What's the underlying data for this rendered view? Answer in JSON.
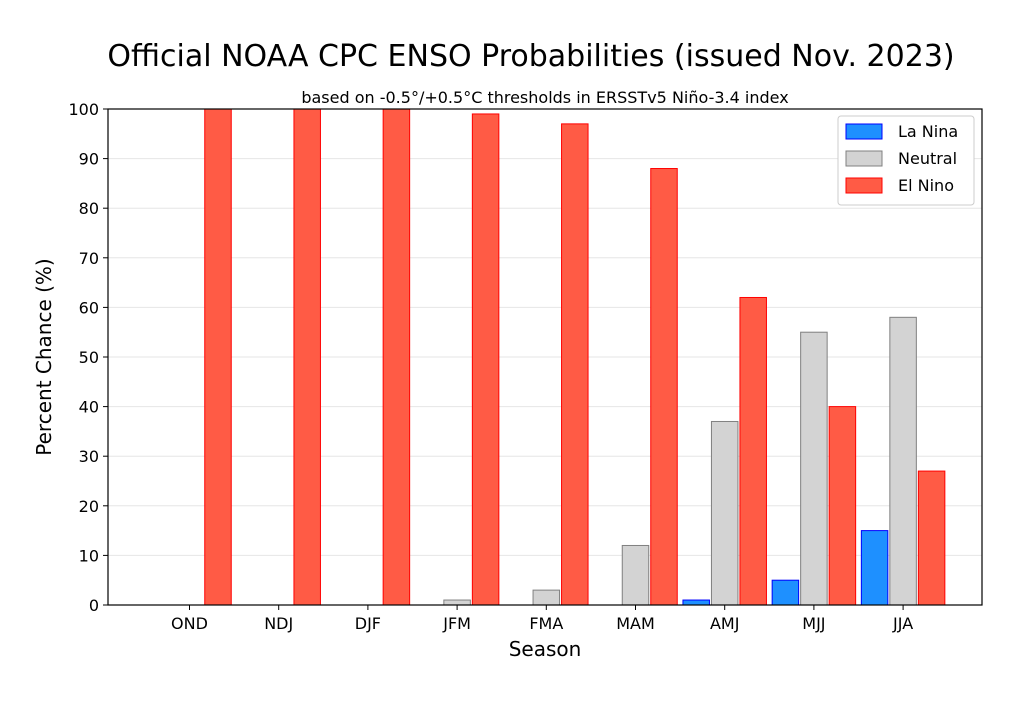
{
  "chart_data": {
    "type": "bar",
    "title": "Official NOAA CPC ENSO Probabilities (issued Nov. 2023)",
    "subtitle": "based on -0.5°/+0.5°C thresholds in ERSSTv5 Niño-3.4 index",
    "xlabel": "Season",
    "ylabel": "Percent Chance (%)",
    "ylim": [
      0,
      100
    ],
    "yticks": [
      0,
      10,
      20,
      30,
      40,
      50,
      60,
      70,
      80,
      90,
      100
    ],
    "categories": [
      "OND",
      "NDJ",
      "DJF",
      "JFM",
      "FMA",
      "MAM",
      "AMJ",
      "MJJ",
      "JJA"
    ],
    "series": [
      {
        "name": "La Nina",
        "color": "#1e90ff",
        "edge": "#0000ff",
        "values": [
          0,
          0,
          0,
          0,
          0,
          0,
          1,
          5,
          15
        ]
      },
      {
        "name": "Neutral",
        "color": "#d3d3d3",
        "edge": "#808080",
        "values": [
          0,
          0,
          0,
          1,
          3,
          12,
          37,
          55,
          58
        ]
      },
      {
        "name": "El Nino",
        "color": "#ff5b45",
        "edge": "#ff0000",
        "values": [
          100,
          100,
          100,
          99,
          97,
          88,
          62,
          40,
          27
        ]
      }
    ],
    "grid": true,
    "legend": "top-right"
  }
}
